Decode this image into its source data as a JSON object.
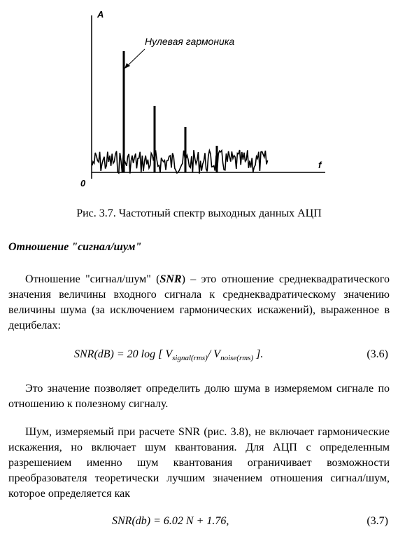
{
  "figure": {
    "y_axis_label": "A",
    "x_axis_label": "f",
    "origin_label": "0",
    "annotation": "Нулевая гармоника",
    "caption": "Рис. 3.7. Частотный спектр выходных данных АЦП"
  },
  "section": {
    "heading": "Отношение \"сигнал/шум\"",
    "p1_before": "Отношение \"сигнал/шум\" (",
    "p1_bold": "SNR",
    "p1_after": ") – это отношение среднеквадратического значения величины входного сигнала к среднеквадратическому значению величины шума (за исключением гармонических искажений), выраженное в децибелах:",
    "formula1": {
      "left": "SNR(dB) = 20 log [ V",
      "sub1": "signal(rms)",
      "mid": "/ V",
      "sub2": "noise(rms)",
      "right": " ].",
      "number": "(3.6)"
    },
    "p2": "Это значение позволяет определить долю шума в измеряемом сигнале по отношению к полезному сигналу.",
    "p3": "Шум, измеряемый при расчете SNR (рис. 3.8), не включает гармонические искажения, но включает шум квантования. Для АЦП с определенным разрешением именно шум квантования ограничивает возможности преобразователя теоретически лучшим значением отношения сигнал/шум, которое определяется как",
    "formula2": {
      "expr": "SNR(db) = 6.02 N + 1.76,",
      "number": "(3.7)"
    }
  }
}
